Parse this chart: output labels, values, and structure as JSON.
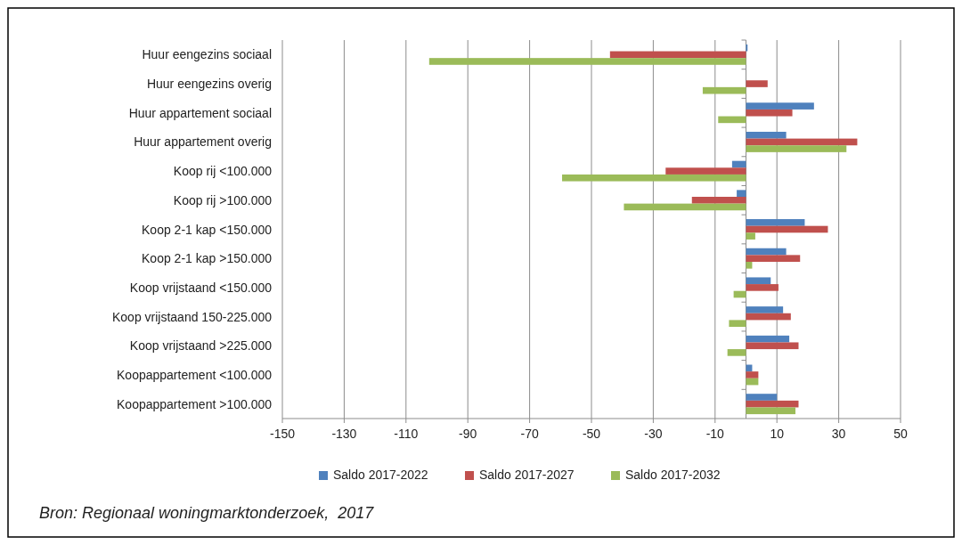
{
  "chart_data": {
    "type": "bar",
    "orientation": "horizontal",
    "categories": [
      "Huur eengezins sociaal",
      "Huur eengezins overig",
      "Huur appartement sociaal",
      "Huur appartement overig",
      "Koop rij <100.000",
      "Koop rij >100.000",
      "Koop 2-1 kap <150.000",
      "Koop 2-1 kap >150.000",
      "Koop vrijstaand <150.000",
      "Koop vrijstaand 150-225.000",
      "Koop vrijstaand >225.000",
      "Koopappartement <100.000",
      "Koopappartement >100.000"
    ],
    "series": [
      {
        "name": "Saldo 2017-2022",
        "color": "#4f81bd",
        "values": [
          0.5,
          0,
          22,
          13,
          -4.5,
          -3,
          19,
          13,
          8,
          12,
          14,
          2,
          10
        ]
      },
      {
        "name": "Saldo 2017-2027",
        "color": "#c0504d",
        "values": [
          -44,
          7,
          15,
          36,
          -26,
          -17.5,
          26.5,
          17.5,
          10.5,
          14.5,
          17,
          4,
          17
        ]
      },
      {
        "name": "Saldo 2017-2032",
        "color": "#9bbb59",
        "values": [
          -102.5,
          -14,
          -9,
          32.5,
          -59.5,
          -39.5,
          3,
          2,
          -4,
          -5.5,
          -6,
          4,
          16
        ]
      }
    ],
    "xlim": [
      -150,
      50
    ],
    "xticks": [
      -150,
      -130,
      -110,
      -90,
      -70,
      -50,
      -30,
      -10,
      10,
      30,
      50
    ],
    "grid": "x",
    "legend": "bottom",
    "annotations": [
      "Bron: Regionaal woningmarktonderzoek,  2017"
    ]
  }
}
